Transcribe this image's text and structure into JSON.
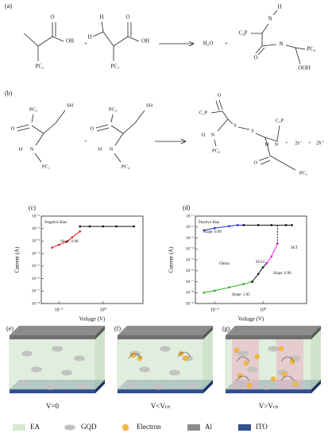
{
  "scheme_a": {
    "label": "(a)",
    "texts": [
      "O",
      "OH",
      "PC₁",
      "+",
      "H",
      "H",
      "O",
      "OH",
      "PC₁",
      "H₂O",
      "+",
      "H",
      "N",
      "C₂P",
      "O",
      "N",
      "PC₂",
      "OOH"
    ]
  },
  "scheme_b": {
    "label": "(b)",
    "texts": [
      "PC₁",
      "SH",
      "O",
      "H",
      "N",
      "PC₂",
      "+",
      "PC₃",
      "SH",
      "O",
      "H",
      "N",
      "PC₄",
      "O",
      "C₂P",
      "H",
      "N",
      "PC₄",
      "S",
      "S",
      "C₂P",
      "H",
      "N",
      "O",
      "PC₁",
      "+",
      "2e⁻",
      "+",
      "2h⁺"
    ]
  },
  "chart_data": [
    {
      "type": "line",
      "label": "(c)",
      "xlabel": "Voltage (V)",
      "ylabel": "Current (A)",
      "xscale": "log",
      "yscale": "log",
      "xlim": [
        0.04,
        8
      ],
      "ylim": [
        1e-08,
        0.1
      ],
      "xticks": [
        {
          "value": 0.1,
          "label": "10⁻¹"
        },
        {
          "value": 1,
          "label": "10⁰"
        }
      ],
      "yticks": [
        {
          "value": 0.1,
          "label": "10⁻¹"
        },
        {
          "value": 0.01,
          "label": "10⁻²"
        },
        {
          "value": 0.001,
          "label": "10⁻³"
        },
        {
          "value": 0.0001,
          "label": "10⁻⁴"
        },
        {
          "value": 1e-05,
          "label": "10⁻⁵"
        },
        {
          "value": 1e-06,
          "label": "10⁻⁶"
        },
        {
          "value": 1e-07,
          "label": "10⁻⁷"
        },
        {
          "value": 1e-08,
          "label": "10⁻⁸"
        }
      ],
      "series": [
        {
          "color": "#e02020",
          "marker": true,
          "dashed": false,
          "x": [
            0.07,
            0.1,
            0.15,
            0.2,
            0.3
          ],
          "values": [
            0.0003,
            0.0005,
            0.0009,
            0.002,
            0.006
          ]
        },
        {
          "color": "#111111",
          "marker": true,
          "dashed": false,
          "x": [
            0.3,
            0.5,
            1,
            2,
            5
          ],
          "values": [
            0.015,
            0.015,
            0.015,
            0.015,
            0.015
          ]
        }
      ],
      "annotations": [
        {
          "text": "Negative Bias",
          "color": "#111111"
        },
        {
          "text": "Slope: 0.98",
          "color": "#e02020"
        }
      ]
    },
    {
      "type": "line",
      "label": "(d)",
      "xlabel": "Voltage (V)",
      "ylabel": "Current (A)",
      "xscale": "log",
      "yscale": "log",
      "xlim": [
        0.04,
        8
      ],
      "ylim": [
        1e-09,
        0.1
      ],
      "xticks": [
        {
          "value": 0.1,
          "label": "10⁻¹"
        },
        {
          "value": 1,
          "label": "10⁰"
        }
      ],
      "yticks": [
        {
          "value": 0.1,
          "label": "10⁻¹"
        },
        {
          "value": 0.01,
          "label": "10⁻²"
        },
        {
          "value": 0.001,
          "label": "10⁻³"
        },
        {
          "value": 0.0001,
          "label": "10⁻⁴"
        },
        {
          "value": 1e-05,
          "label": "10⁻⁵"
        },
        {
          "value": 1e-06,
          "label": "10⁻⁶"
        },
        {
          "value": 1e-07,
          "label": "10⁻⁷"
        },
        {
          "value": 1e-08,
          "label": "10⁻⁸"
        },
        {
          "value": 1e-09,
          "label": "10⁻⁹"
        }
      ],
      "series": [
        {
          "color": "#2030e0",
          "marker": true,
          "dashed": false,
          "x": [
            0.06,
            0.1,
            0.2,
            0.3,
            0.4
          ],
          "values": [
            0.005,
            0.008,
            0.012,
            0.015,
            0.015
          ]
        },
        {
          "color": "#111111",
          "marker": true,
          "dashed": false,
          "x": [
            0.4,
            0.8,
            1.5,
            3,
            4
          ],
          "values": [
            0.015,
            0.015,
            0.015,
            0.015,
            0.015
          ]
        },
        {
          "color": "#20b020",
          "marker": true,
          "dashed": false,
          "x": [
            0.06,
            0.1,
            0.2,
            0.4,
            0.6
          ],
          "values": [
            1e-08,
            1.5e-08,
            3e-08,
            6e-08,
            1e-07
          ]
        },
        {
          "color": "#111111",
          "marker": true,
          "dashed": false,
          "x": [
            0.6,
            0.8,
            1,
            1.2
          ],
          "values": [
            1e-07,
            5e-07,
            2e-06,
            5e-06
          ]
        },
        {
          "color": "#e020e0",
          "marker": true,
          "dashed": false,
          "x": [
            1.2,
            1.5,
            2
          ],
          "values": [
            5e-06,
            2e-05,
            0.0003
          ]
        },
        {
          "color": "#111111",
          "marker": false,
          "dashed": true,
          "x": [
            2,
            2
          ],
          "values": [
            0.0003,
            0.015
          ]
        }
      ],
      "annotations": [
        {
          "text": "Positive Bias",
          "color": "#111111"
        },
        {
          "text": "Slope: 0.99",
          "color": "#2030e0"
        },
        {
          "text": "Ohmic",
          "color": "#111111"
        },
        {
          "text": "SCLC",
          "color": "#111111"
        },
        {
          "text": "Slope: 8.96",
          "color": "#e020e0"
        },
        {
          "text": "Slope: 1.05",
          "color": "#20b020"
        },
        {
          "text": "SET",
          "color": "#111111"
        }
      ]
    }
  ],
  "devices": [
    {
      "label": "(e)",
      "caption": "V=0"
    },
    {
      "label": "(f)",
      "caption": "V<Vₜₕ"
    },
    {
      "label": "(g)",
      "caption": "V>Vₜₕ"
    }
  ],
  "legend": [
    {
      "name": "EA",
      "color": "#d6ead2"
    },
    {
      "name": "GQD",
      "color": "#bdbdbd"
    },
    {
      "name": "Electron",
      "color": "#f5b841"
    },
    {
      "name": "Al",
      "color": "#8c8c8c"
    },
    {
      "name": "ITO",
      "color": "#2f4f8f"
    }
  ]
}
